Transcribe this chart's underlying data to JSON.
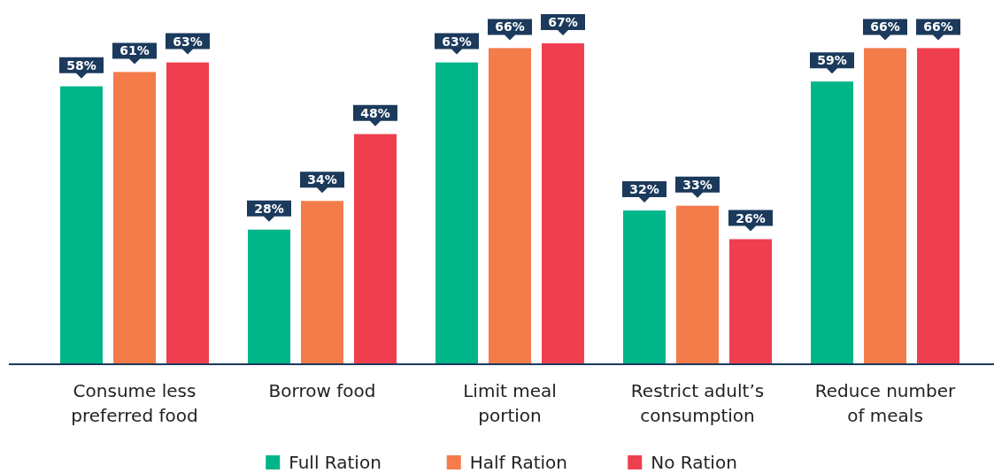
{
  "chart_data": {
    "type": "bar",
    "categories": [
      "Consume less preferred food",
      "Borrow food",
      "Limit meal portion",
      "Restrict adult’s consumption",
      "Reduce number of meals"
    ],
    "series": [
      {
        "name": "Full Ration",
        "color": "#00b588",
        "values": [
          58,
          28,
          63,
          32,
          59
        ],
        "value_labels": [
          "58%",
          "28%",
          "63%",
          "32%",
          "59%"
        ]
      },
      {
        "name": "Half Ration",
        "color": "#f47b4a",
        "values": [
          61,
          34,
          66,
          33,
          66
        ],
        "value_labels": [
          "61%",
          "34%",
          "66%",
          "33%",
          "66%"
        ]
      },
      {
        "name": "No Ration",
        "color": "#ef3f4f",
        "values": [
          63,
          48,
          67,
          26,
          66
        ],
        "value_labels": [
          "63%",
          "48%",
          "67%",
          "26%",
          "66%"
        ]
      }
    ],
    "legend": "bottom",
    "grid": false
  }
}
